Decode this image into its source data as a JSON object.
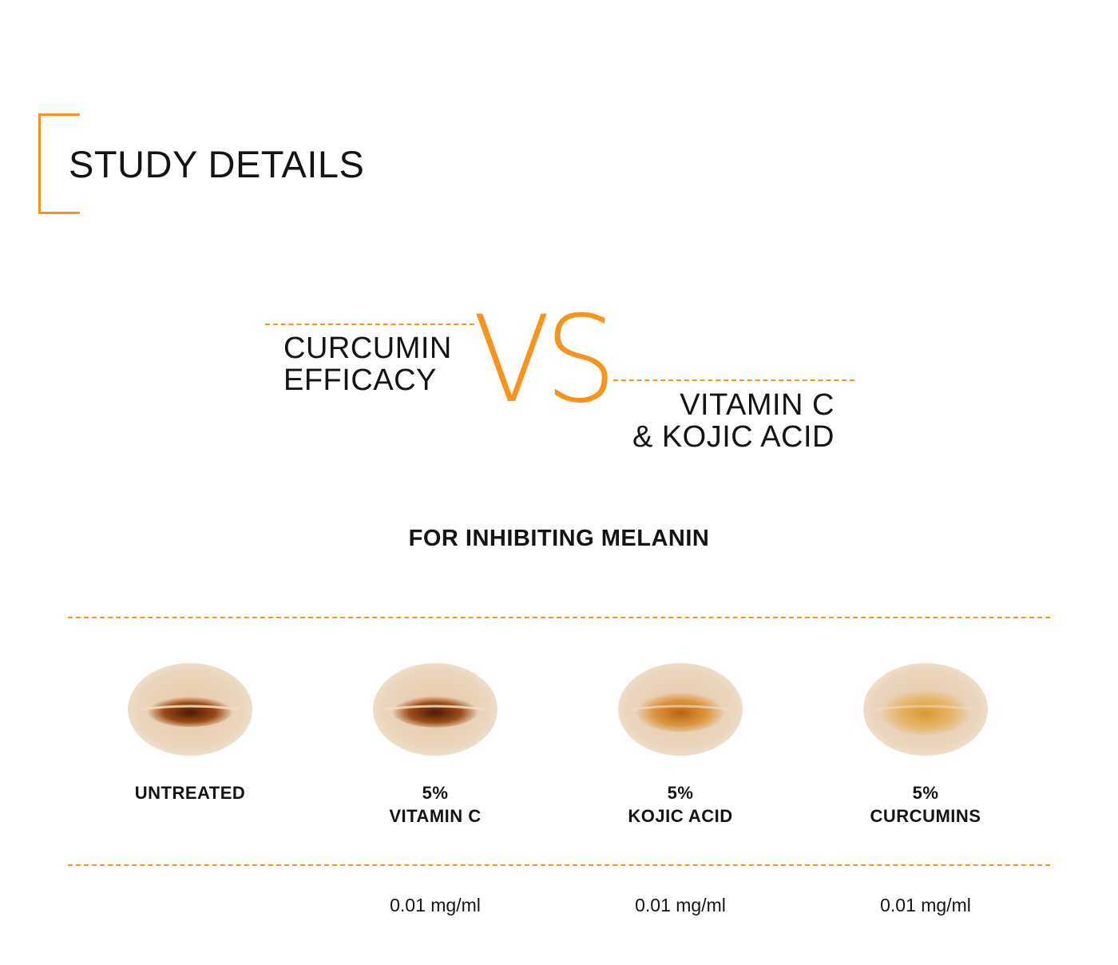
{
  "colors": {
    "accent": "#f7941d",
    "text": "#141414"
  },
  "header": {
    "title": "STUDY DETAILS"
  },
  "comparison": {
    "left_title": "CURCUMIN\nEFFICACY",
    "vs": "VS",
    "right_title": "VITAMIN C\n& KOJIC ACID"
  },
  "subtitle": "FOR INHIBITING MELANIN",
  "samples": [
    {
      "label": "UNTREATED",
      "concentration": "",
      "pigment_intensity": 1.0
    },
    {
      "label": "5%\nVITAMIN C",
      "concentration": "0.01 mg/ml",
      "pigment_intensity": 0.95
    },
    {
      "label": "5%\nKOJIC ACID",
      "concentration": "0.01 mg/ml",
      "pigment_intensity": 0.55
    },
    {
      "label": "5%\nCURCUMINS",
      "concentration": "0.01 mg/ml",
      "pigment_intensity": 0.3
    }
  ]
}
